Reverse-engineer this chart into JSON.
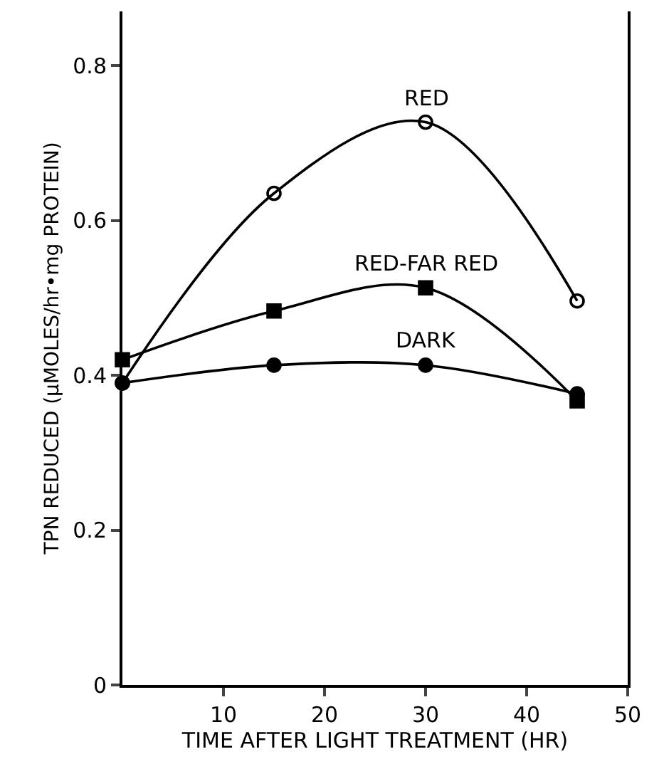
{
  "chart_data": {
    "type": "line",
    "xlabel": "TIME AFTER LIGHT TREATMENT (HR)",
    "ylabel": "TPN REDUCED (µMOLES/hr•mg PROTEIN)",
    "x": [
      0,
      15,
      30,
      45
    ],
    "series": [
      {
        "name": "RED",
        "color": "#000000",
        "marker": "circle-open",
        "values": [
          0.39,
          0.635,
          0.727,
          0.496
        ]
      },
      {
        "name": "RED-FAR RED",
        "color": "#000000",
        "marker": "square",
        "values": [
          0.42,
          0.483,
          0.513,
          0.367
        ]
      },
      {
        "name": "DARK",
        "color": "#000000",
        "marker": "circle",
        "values": [
          0.39,
          0.413,
          0.413,
          0.376
        ]
      }
    ],
    "xlim": [
      0,
      50
    ],
    "xticks": [
      10,
      20,
      30,
      40,
      50
    ],
    "ylim": [
      0,
      0.87
    ],
    "yticks": [
      0,
      {
        "value": 0.2,
        "label": "0.2"
      },
      {
        "value": 0.4,
        "label": "0.4"
      },
      {
        "value": 0.6,
        "label": "0.6"
      },
      {
        "value": 0.8,
        "label": "0.8"
      }
    ],
    "grid": false,
    "legend": false,
    "line_style": "solid"
  }
}
